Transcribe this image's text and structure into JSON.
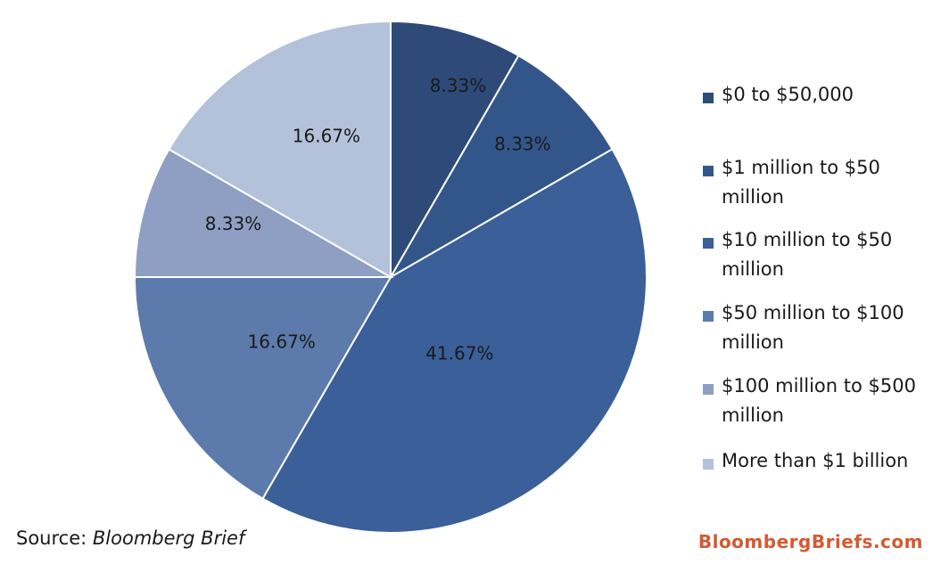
{
  "chart_data": {
    "type": "pie",
    "slices": [
      {
        "label": "$0 to $50,000",
        "value": 8.33,
        "display": "8.33%",
        "color": "#2d4a78"
      },
      {
        "label": "$1 million to $50 million",
        "value": 8.33,
        "display": "8.33%",
        "color": "#33568a"
      },
      {
        "label": "$10 million to $50 million",
        "value": 41.67,
        "display": "41.67%",
        "color": "#3a5f99"
      },
      {
        "label": "$50 million to $100 million",
        "value": 16.67,
        "display": "16.67%",
        "color": "#5c7aab"
      },
      {
        "label": "$100 million to $500 million",
        "value": 8.33,
        "display": "8.33%",
        "color": "#8e9fc3"
      },
      {
        "label": "More than $1 billion",
        "value": 16.67,
        "display": "16.67%",
        "color": "#b3c1db"
      }
    ],
    "legend_position": "right",
    "start_angle": "top, clockwise"
  },
  "footer": {
    "source_prefix": "Source: ",
    "source_name": "Bloomberg Brief",
    "brand": "BloombergBriefs.com"
  }
}
